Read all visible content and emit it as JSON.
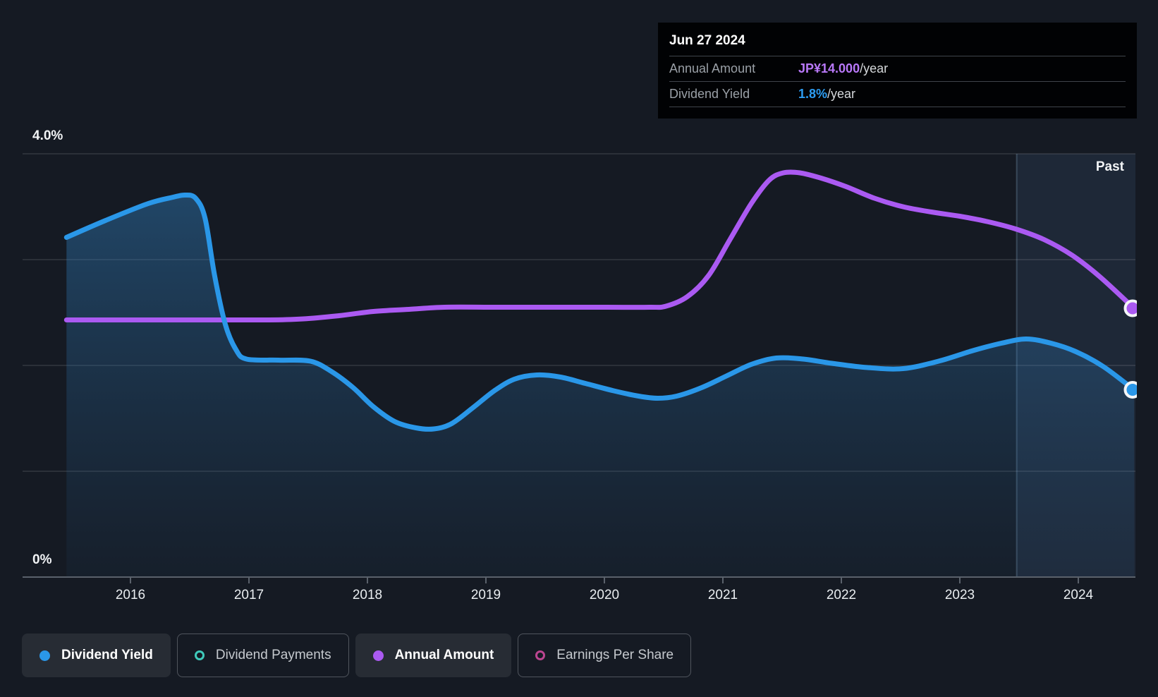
{
  "page": {
    "background": "#151a23"
  },
  "tooltip": {
    "date": "Jun 27 2024",
    "rows": [
      {
        "label": "Annual Amount",
        "value": "JP¥14.000",
        "suffix": "/year",
        "value_color": "#b878f8"
      },
      {
        "label": "Dividend Yield",
        "value": "1.8%",
        "suffix": "/year",
        "value_color": "#2d9df2"
      }
    ]
  },
  "axes": {
    "y_top_label": "4.0%",
    "y_bottom_label": "0%",
    "x_years": [
      "2016",
      "2017",
      "2018",
      "2019",
      "2020",
      "2021",
      "2022",
      "2023",
      "2024"
    ]
  },
  "past_label": "Past",
  "legend": [
    {
      "label": "Dividend Yield",
      "color": "#2a97e8",
      "marker": "filled",
      "active": true
    },
    {
      "label": "Dividend Payments",
      "color": "#3fcabb",
      "marker": "outline",
      "active": false
    },
    {
      "label": "Annual Amount",
      "color": "#ab5af2",
      "marker": "filled",
      "active": true
    },
    {
      "label": "Earnings Per Share",
      "color": "#bb4590",
      "marker": "outline",
      "active": false
    }
  ],
  "chart_data": {
    "type": "line",
    "title": "Dividend yield history with annual dividend amount",
    "x_axis": {
      "ticks": [
        2016,
        2017,
        2018,
        2019,
        2020,
        2021,
        2022,
        2023,
        2024
      ],
      "range": [
        2015.45,
        2024.5
      ]
    },
    "y_axis": {
      "unit": "%",
      "range": [
        0,
        4
      ],
      "gridlines_pct": [
        1,
        2,
        3,
        4
      ],
      "labeled_ticks": [
        "4.0%",
        "0%"
      ],
      "grid": true
    },
    "legend_position": "bottom",
    "past_region": {
      "from_year": 2023.48,
      "label": "Past"
    },
    "tooltip_point": {
      "date": "Jun 27 2024",
      "annual_amount": "JP¥14.000/year",
      "dividend_yield": "1.8%/year"
    },
    "series": [
      {
        "name": "Dividend Yield",
        "unit": "%",
        "color": "#2a97e8",
        "stroke_width": 7,
        "area": true,
        "end_marker": true,
        "points": [
          [
            2015.46,
            3.21
          ],
          [
            2015.79,
            3.37
          ],
          [
            2016.15,
            3.53
          ],
          [
            2016.36,
            3.59
          ],
          [
            2016.46,
            3.61
          ],
          [
            2016.55,
            3.58
          ],
          [
            2016.63,
            3.39
          ],
          [
            2016.71,
            2.85
          ],
          [
            2016.8,
            2.39
          ],
          [
            2016.89,
            2.15
          ],
          [
            2016.98,
            2.06
          ],
          [
            2017.25,
            2.05
          ],
          [
            2017.52,
            2.04
          ],
          [
            2017.7,
            1.94
          ],
          [
            2017.88,
            1.79
          ],
          [
            2018.05,
            1.61
          ],
          [
            2018.23,
            1.47
          ],
          [
            2018.41,
            1.41
          ],
          [
            2018.56,
            1.4
          ],
          [
            2018.71,
            1.45
          ],
          [
            2018.89,
            1.6
          ],
          [
            2019.07,
            1.76
          ],
          [
            2019.24,
            1.87
          ],
          [
            2019.43,
            1.91
          ],
          [
            2019.63,
            1.89
          ],
          [
            2019.84,
            1.83
          ],
          [
            2020.08,
            1.76
          ],
          [
            2020.29,
            1.71
          ],
          [
            2020.45,
            1.69
          ],
          [
            2020.61,
            1.71
          ],
          [
            2020.82,
            1.79
          ],
          [
            2021.03,
            1.9
          ],
          [
            2021.24,
            2.01
          ],
          [
            2021.45,
            2.07
          ],
          [
            2021.68,
            2.06
          ],
          [
            2021.92,
            2.02
          ],
          [
            2022.22,
            1.98
          ],
          [
            2022.52,
            1.97
          ],
          [
            2022.82,
            2.04
          ],
          [
            2023.11,
            2.14
          ],
          [
            2023.35,
            2.21
          ],
          [
            2023.56,
            2.25
          ],
          [
            2023.77,
            2.21
          ],
          [
            2023.98,
            2.13
          ],
          [
            2024.21,
            1.99
          ],
          [
            2024.47,
            1.77
          ]
        ]
      },
      {
        "name": "Annual Amount",
        "unit": "JP¥/year",
        "color": "#ab5af2",
        "stroke_width": 7,
        "area": false,
        "end_marker": true,
        "scale_note": "plotted on an unlabeled right-hand JP¥ scale; y values below are positions expressed on the left % axis; final value shown in tooltip = JP¥14.000/year",
        "points": [
          [
            2015.46,
            2.43
          ],
          [
            2016.39,
            2.43
          ],
          [
            2017.16,
            2.43
          ],
          [
            2017.46,
            2.44
          ],
          [
            2017.76,
            2.47
          ],
          [
            2018.05,
            2.51
          ],
          [
            2018.35,
            2.53
          ],
          [
            2018.65,
            2.55
          ],
          [
            2019.07,
            2.55
          ],
          [
            2019.54,
            2.55
          ],
          [
            2020.02,
            2.55
          ],
          [
            2020.38,
            2.55
          ],
          [
            2020.52,
            2.56
          ],
          [
            2020.7,
            2.65
          ],
          [
            2020.88,
            2.85
          ],
          [
            2021.06,
            3.19
          ],
          [
            2021.24,
            3.53
          ],
          [
            2021.39,
            3.75
          ],
          [
            2021.51,
            3.82
          ],
          [
            2021.65,
            3.82
          ],
          [
            2021.83,
            3.77
          ],
          [
            2022.04,
            3.69
          ],
          [
            2022.28,
            3.58
          ],
          [
            2022.52,
            3.5
          ],
          [
            2022.76,
            3.45
          ],
          [
            2023.0,
            3.41
          ],
          [
            2023.23,
            3.36
          ],
          [
            2023.47,
            3.29
          ],
          [
            2023.71,
            3.19
          ],
          [
            2023.95,
            3.04
          ],
          [
            2024.18,
            2.84
          ],
          [
            2024.47,
            2.54
          ]
        ]
      }
    ]
  }
}
